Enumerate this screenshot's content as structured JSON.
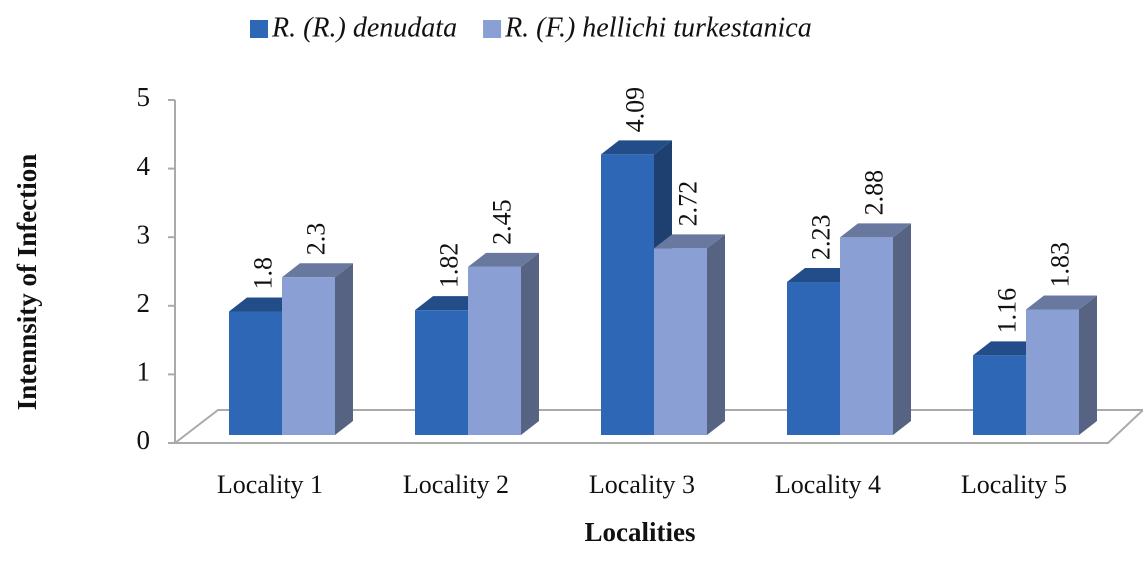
{
  "chart_data": {
    "type": "bar",
    "categories": [
      "Locality 1",
      "Locality 2",
      "Locality 3",
      "Locality 4",
      "Locality 5"
    ],
    "series": [
      {
        "name": "R. (R.) denudata",
        "color": "#2e67b5",
        "values": [
          1.8,
          1.82,
          4.09,
          2.23,
          1.16
        ]
      },
      {
        "name": "R. (F.) hellichi turkestanica",
        "color": "#8aa0d4",
        "values": [
          2.3,
          2.45,
          2.72,
          2.88,
          1.83
        ]
      }
    ],
    "ylim": [
      0,
      5
    ],
    "yticks": [
      0,
      1,
      2,
      3,
      4,
      5
    ],
    "xlabel": "Localities",
    "ylabel": "Intennsity of Infection"
  }
}
